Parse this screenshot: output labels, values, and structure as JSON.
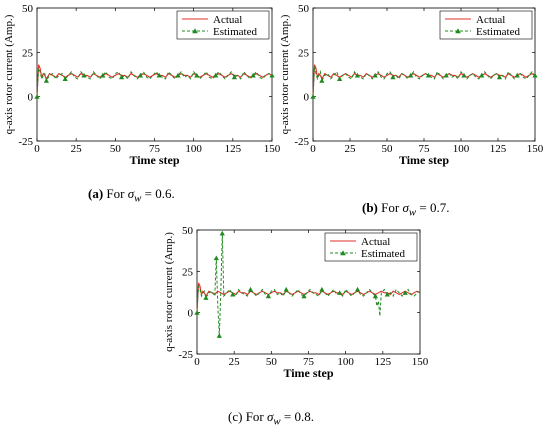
{
  "chart_data": [
    {
      "type": "line",
      "panel": "a",
      "caption": {
        "label": "(a)",
        "text": "For",
        "sigma": "σ",
        "sub": "w",
        "eq": "= 0.6."
      },
      "xlabel": "Time step",
      "ylabel": "q-axis rotor current (Amp.)",
      "xlim": [
        0,
        150
      ],
      "ylim": [
        -25,
        50
      ],
      "xticks": [
        "0",
        "25",
        "50",
        "75",
        "100",
        "125",
        "150"
      ],
      "yticks": [
        "-25",
        "0",
        "25",
        "50"
      ],
      "legend": {
        "position": "top-right",
        "entries": [
          "Actual",
          "Estimated"
        ]
      },
      "grid": false,
      "series": [
        {
          "name": "Actual",
          "color": "#e0312b",
          "style": "solid",
          "x": [
            0,
            1,
            2,
            3,
            4,
            5,
            6,
            8,
            10,
            12,
            14,
            16,
            18,
            20,
            22,
            24,
            26,
            28,
            30,
            32,
            34,
            36,
            38,
            40,
            42,
            44,
            46,
            48,
            50,
            52,
            54,
            56,
            58,
            60,
            62,
            64,
            66,
            68,
            70,
            72,
            74,
            76,
            78,
            80,
            82,
            84,
            86,
            88,
            90,
            92,
            94,
            96,
            98,
            100,
            102,
            104,
            106,
            108,
            110,
            112,
            114,
            116,
            118,
            120,
            122,
            124,
            126,
            128,
            130,
            132,
            134,
            136,
            138,
            140,
            142,
            144,
            146,
            148,
            150
          ],
          "y": [
            0,
            18,
            16,
            11,
            13,
            12,
            10,
            13,
            12,
            11,
            13,
            12,
            11,
            12,
            13,
            12,
            11,
            13,
            12,
            12,
            11,
            13,
            12,
            11,
            12,
            13,
            12,
            11,
            12,
            13,
            12,
            12,
            11,
            13,
            12,
            11,
            12,
            13,
            12,
            11,
            12,
            13,
            12,
            12,
            11,
            13,
            12,
            11,
            12,
            13,
            12,
            12,
            11,
            13,
            12,
            11,
            12,
            13,
            12,
            11,
            12,
            13,
            12,
            11,
            12,
            13,
            12,
            12,
            11,
            13,
            12,
            11,
            12,
            13,
            12,
            11,
            12,
            13,
            12
          ]
        },
        {
          "name": "Estimated",
          "color": "#1f8a1f",
          "style": "dashed-triangle",
          "x": [
            0,
            1,
            2,
            3,
            4,
            5,
            6,
            8,
            10,
            12,
            14,
            16,
            18,
            20,
            22,
            24,
            26,
            28,
            30,
            32,
            34,
            36,
            38,
            40,
            42,
            44,
            46,
            48,
            50,
            52,
            54,
            56,
            58,
            60,
            62,
            64,
            66,
            68,
            70,
            72,
            74,
            76,
            78,
            80,
            82,
            84,
            86,
            88,
            90,
            92,
            94,
            96,
            98,
            100,
            102,
            104,
            106,
            108,
            110,
            112,
            114,
            116,
            118,
            120,
            122,
            124,
            126,
            128,
            130,
            132,
            134,
            136,
            138,
            140,
            142,
            144,
            146,
            148,
            150
          ],
          "y": [
            0,
            16,
            14,
            10,
            12,
            13,
            9,
            12,
            13,
            10,
            12,
            13,
            10,
            12,
            14,
            11,
            10,
            14,
            12,
            11,
            10,
            14,
            12,
            10,
            12,
            14,
            11,
            10,
            13,
            14,
            11,
            12,
            10,
            14,
            12,
            10,
            12,
            14,
            11,
            10,
            12,
            14,
            12,
            11,
            10,
            14,
            12,
            10,
            12,
            14,
            11,
            12,
            10,
            14,
            12,
            10,
            12,
            14,
            11,
            10,
            12,
            14,
            12,
            10,
            12,
            14,
            11,
            12,
            10,
            14,
            12,
            10,
            12,
            14,
            11,
            10,
            12,
            13,
            12
          ]
        }
      ]
    },
    {
      "type": "line",
      "panel": "b",
      "caption": {
        "label": "(b)",
        "text": "For",
        "sigma": "σ",
        "sub": "w",
        "eq": "= 0.7."
      },
      "xlabel": "Time step",
      "ylabel": "q-axis rotor current (Amp.)",
      "xlim": [
        0,
        150
      ],
      "ylim": [
        -25,
        50
      ],
      "xticks": [
        "0",
        "25",
        "50",
        "75",
        "100",
        "125",
        "150"
      ],
      "yticks": [
        "-25",
        "0",
        "25",
        "50"
      ],
      "legend": {
        "position": "top-right",
        "entries": [
          "Actual",
          "Estimated"
        ]
      },
      "grid": false,
      "series": [
        {
          "name": "Actual",
          "color": "#e0312b",
          "style": "solid",
          "x": [
            0,
            1,
            2,
            3,
            4,
            5,
            6,
            8,
            10,
            12,
            14,
            16,
            18,
            20,
            22,
            24,
            26,
            28,
            30,
            32,
            34,
            36,
            38,
            40,
            42,
            44,
            46,
            48,
            50,
            52,
            54,
            56,
            58,
            60,
            62,
            64,
            66,
            68,
            70,
            72,
            74,
            76,
            78,
            80,
            82,
            84,
            86,
            88,
            90,
            92,
            94,
            96,
            98,
            100,
            102,
            104,
            106,
            108,
            110,
            112,
            114,
            116,
            118,
            120,
            122,
            124,
            126,
            128,
            130,
            132,
            134,
            136,
            138,
            140,
            142,
            144,
            146,
            148,
            150
          ],
          "y": [
            0,
            18,
            16,
            11,
            13,
            12,
            10,
            13,
            12,
            11,
            13,
            12,
            11,
            12,
            13,
            12,
            11,
            13,
            12,
            12,
            11,
            13,
            12,
            11,
            12,
            13,
            12,
            11,
            12,
            13,
            12,
            12,
            11,
            13,
            12,
            11,
            12,
            13,
            12,
            11,
            12,
            13,
            12,
            12,
            11,
            13,
            12,
            11,
            12,
            13,
            12,
            12,
            11,
            13,
            12,
            11,
            12,
            13,
            12,
            11,
            12,
            13,
            12,
            11,
            12,
            13,
            12,
            12,
            11,
            13,
            12,
            11,
            12,
            13,
            12,
            11,
            12,
            13,
            12
          ]
        },
        {
          "name": "Estimated",
          "color": "#1f8a1f",
          "style": "dashed-triangle",
          "x": [
            0,
            1,
            2,
            3,
            4,
            5,
            6,
            8,
            10,
            12,
            14,
            16,
            18,
            20,
            22,
            24,
            26,
            28,
            30,
            32,
            34,
            36,
            38,
            40,
            42,
            44,
            46,
            48,
            50,
            52,
            54,
            56,
            58,
            60,
            62,
            64,
            66,
            68,
            70,
            72,
            74,
            76,
            78,
            80,
            82,
            84,
            86,
            88,
            90,
            92,
            94,
            96,
            98,
            100,
            102,
            104,
            106,
            108,
            110,
            112,
            114,
            116,
            118,
            120,
            122,
            124,
            126,
            128,
            130,
            132,
            134,
            136,
            138,
            140,
            142,
            144,
            146,
            148,
            150
          ],
          "y": [
            0,
            17,
            13,
            10,
            12,
            14,
            9,
            12,
            13,
            10,
            12,
            14,
            10,
            12,
            13,
            11,
            10,
            14,
            12,
            11,
            10,
            13,
            12,
            10,
            12,
            14,
            11,
            10,
            13,
            14,
            11,
            12,
            10,
            13,
            12,
            10,
            12,
            14,
            11,
            10,
            12,
            13,
            12,
            11,
            10,
            14,
            12,
            10,
            12,
            13,
            11,
            12,
            10,
            14,
            12,
            10,
            12,
            13,
            11,
            10,
            12,
            14,
            12,
            10,
            12,
            13,
            11,
            12,
            10,
            14,
            12,
            10,
            12,
            13,
            11,
            10,
            12,
            14,
            12
          ]
        }
      ]
    },
    {
      "type": "line",
      "panel": "c",
      "caption": {
        "label": "(c)",
        "text": "For",
        "sigma": "σ",
        "sub": "w",
        "eq": "= 0.8."
      },
      "xlabel": "Time step",
      "ylabel": "q-axis rotor current (Amp.)",
      "xlim": [
        0,
        150
      ],
      "ylim": [
        -25,
        50
      ],
      "xticks": [
        "0",
        "25",
        "50",
        "75",
        "100",
        "125",
        "150"
      ],
      "yticks": [
        "-25",
        "0",
        "25",
        "50"
      ],
      "legend": {
        "position": "top-right",
        "entries": [
          "Actual",
          "Estimated"
        ]
      },
      "grid": false,
      "series": [
        {
          "name": "Actual",
          "color": "#e0312b",
          "style": "solid",
          "x": [
            0,
            1,
            2,
            3,
            4,
            5,
            6,
            8,
            10,
            12,
            14,
            16,
            18,
            20,
            22,
            24,
            26,
            28,
            30,
            32,
            34,
            36,
            38,
            40,
            42,
            44,
            46,
            48,
            50,
            52,
            54,
            56,
            58,
            60,
            62,
            64,
            66,
            68,
            70,
            72,
            74,
            76,
            78,
            80,
            82,
            84,
            86,
            88,
            90,
            92,
            94,
            96,
            98,
            100,
            102,
            104,
            106,
            108,
            110,
            112,
            114,
            116,
            118,
            120,
            122,
            124,
            126,
            128,
            130,
            132,
            134,
            136,
            138,
            140,
            142,
            144,
            146,
            148,
            150
          ],
          "y": [
            0,
            18,
            16,
            11,
            13,
            12,
            10,
            13,
            12,
            11,
            13,
            12,
            11,
            12,
            13,
            12,
            11,
            13,
            12,
            12,
            11,
            13,
            12,
            11,
            12,
            13,
            12,
            11,
            12,
            13,
            12,
            12,
            11,
            13,
            12,
            11,
            12,
            13,
            12,
            11,
            12,
            13,
            12,
            12,
            11,
            13,
            12,
            11,
            12,
            13,
            12,
            12,
            11,
            13,
            12,
            11,
            12,
            13,
            12,
            11,
            12,
            13,
            12,
            11,
            12,
            13,
            12,
            12,
            11,
            13,
            12,
            11,
            12,
            13,
            12,
            11,
            12,
            13,
            12
          ]
        },
        {
          "name": "Estimated",
          "color": "#1f8a1f",
          "style": "dashed-triangle",
          "x": [
            0,
            1,
            2,
            3,
            4,
            5,
            6,
            8,
            10,
            12,
            13,
            14,
            15,
            16,
            17,
            18,
            20,
            22,
            24,
            26,
            28,
            30,
            32,
            34,
            36,
            38,
            40,
            42,
            44,
            46,
            48,
            50,
            52,
            54,
            56,
            58,
            60,
            62,
            64,
            66,
            68,
            70,
            72,
            74,
            76,
            78,
            80,
            82,
            84,
            86,
            88,
            90,
            92,
            94,
            96,
            98,
            100,
            102,
            104,
            106,
            108,
            110,
            112,
            114,
            116,
            118,
            120,
            121,
            122,
            123,
            124,
            126,
            128,
            130,
            132,
            134,
            136,
            138,
            140,
            142,
            144,
            146,
            148,
            150
          ],
          "y": [
            0,
            16,
            14,
            10,
            12,
            13,
            9,
            12,
            13,
            10,
            33,
            4,
            -14,
            12,
            48,
            10,
            12,
            14,
            11,
            10,
            14,
            12,
            11,
            10,
            14,
            12,
            10,
            12,
            14,
            11,
            10,
            13,
            14,
            11,
            12,
            10,
            14,
            12,
            10,
            12,
            14,
            11,
            10,
            12,
            14,
            12,
            11,
            10,
            14,
            12,
            10,
            12,
            14,
            11,
            12,
            10,
            14,
            12,
            10,
            12,
            14,
            11,
            10,
            12,
            14,
            12,
            10,
            4,
            7,
            -2,
            12,
            14,
            11,
            12,
            10,
            14,
            12,
            10,
            12,
            14,
            11,
            10,
            12,
            13
          ]
        }
      ]
    }
  ]
}
